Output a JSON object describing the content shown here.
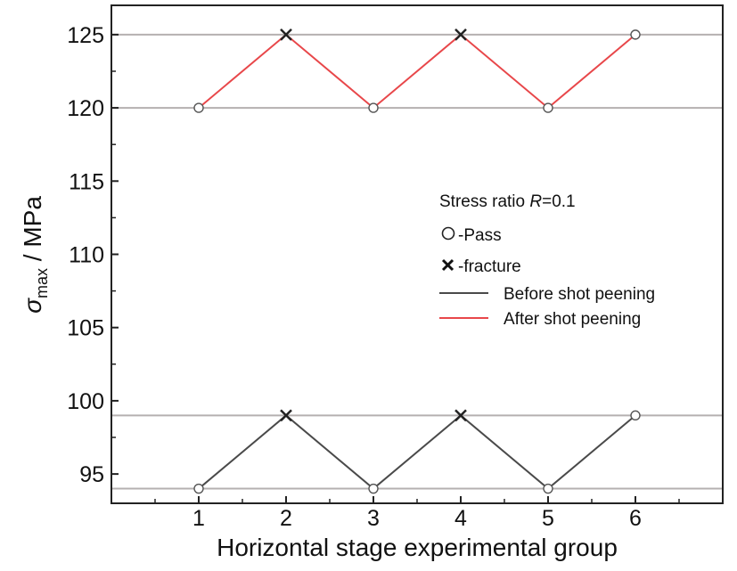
{
  "chart_data": {
    "type": "line",
    "title": "",
    "xlabel": "Horizontal stage experimental group",
    "ylabel_symbol": "σ",
    "ylabel_subscript": "max",
    "ylabel_unit": " / MPa",
    "x": [
      1,
      2,
      3,
      4,
      5,
      6
    ],
    "xlim": [
      0,
      7
    ],
    "ylim": [
      93,
      127
    ],
    "yticks": [
      95,
      100,
      105,
      110,
      115,
      120,
      125
    ],
    "xticks": [
      1,
      2,
      3,
      4,
      5,
      6
    ],
    "reference_lines": [
      94,
      99,
      120,
      125
    ],
    "series": [
      {
        "name": "Before shot peening",
        "color": "#4a4a4a",
        "values": [
          94,
          99,
          94,
          99,
          94,
          99
        ],
        "markers": [
          "pass",
          "fracture",
          "pass",
          "fracture",
          "pass",
          "pass"
        ]
      },
      {
        "name": "After shot peening",
        "color": "#e8474a",
        "values": [
          120,
          125,
          120,
          125,
          120,
          125
        ],
        "markers": [
          "pass",
          "fracture",
          "pass",
          "fracture",
          "pass",
          "pass"
        ]
      }
    ],
    "legend": {
      "title_prefix": "Stress ratio ",
      "title_var": "R",
      "title_suffix": "=0.1",
      "pass_label": "-Pass",
      "fracture_label": "-fracture",
      "before_label": "Before shot peening",
      "after_label": "After shot peening"
    }
  }
}
